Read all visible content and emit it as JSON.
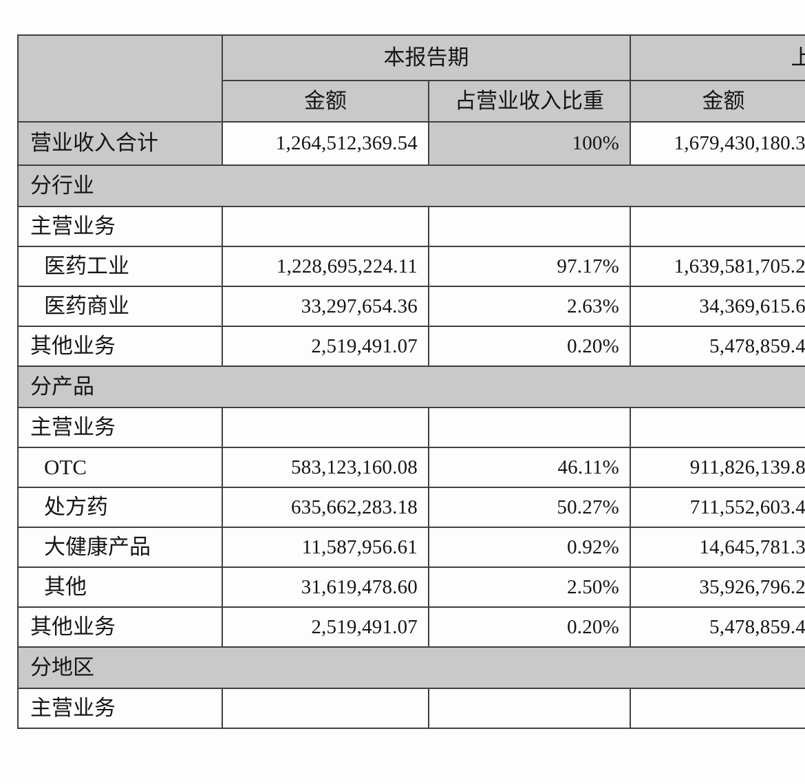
{
  "colors": {
    "section_header_bg": "#c9c9c9",
    "table_border": "#3f3f3f",
    "text": "#151515"
  },
  "table": {
    "header": {
      "current_period": "本报告期",
      "previous_period": "上年同期",
      "amount_label": "金额",
      "ratio_label": "占营业收入比重",
      "prev_amount_label": "金额"
    },
    "total_row": {
      "label": "营业收入合计",
      "amount": "1,264,512,369.54",
      "ratio": "100%",
      "prev_amount": "1,679,430,180.3"
    },
    "sections": [
      {
        "title": "分行业",
        "rows": [
          {
            "label": "主营业务",
            "indent": false,
            "amount": "",
            "ratio": "",
            "prev_amount": ""
          },
          {
            "label": "医药工业",
            "indent": true,
            "amount": "1,228,695,224.11",
            "ratio": "97.17%",
            "prev_amount": "1,639,581,705.2"
          },
          {
            "label": "医药商业",
            "indent": true,
            "amount": "33,297,654.36",
            "ratio": "2.63%",
            "prev_amount": "34,369,615.6"
          },
          {
            "label": "其他业务",
            "indent": false,
            "amount": "2,519,491.07",
            "ratio": "0.20%",
            "prev_amount": "5,478,859.4"
          }
        ]
      },
      {
        "title": "分产品",
        "rows": [
          {
            "label": "主营业务",
            "indent": false,
            "amount": "",
            "ratio": "",
            "prev_amount": ""
          },
          {
            "label": "OTC",
            "indent": true,
            "amount": "583,123,160.08",
            "ratio": "46.11%",
            "prev_amount": "911,826,139.8"
          },
          {
            "label": "处方药",
            "indent": true,
            "amount": "635,662,283.18",
            "ratio": "50.27%",
            "prev_amount": "711,552,603.4"
          },
          {
            "label": "大健康产品",
            "indent": true,
            "amount": "11,587,956.61",
            "ratio": "0.92%",
            "prev_amount": "14,645,781.3"
          },
          {
            "label": "其他",
            "indent": true,
            "amount": "31,619,478.60",
            "ratio": "2.50%",
            "prev_amount": "35,926,796.2"
          },
          {
            "label": "其他业务",
            "indent": false,
            "amount": "2,519,491.07",
            "ratio": "0.20%",
            "prev_amount": "5,478,859.4"
          }
        ]
      },
      {
        "title": "分地区",
        "rows": [
          {
            "label": "主营业务",
            "indent": false,
            "amount": "",
            "ratio": "",
            "prev_amount": ""
          }
        ]
      }
    ]
  }
}
